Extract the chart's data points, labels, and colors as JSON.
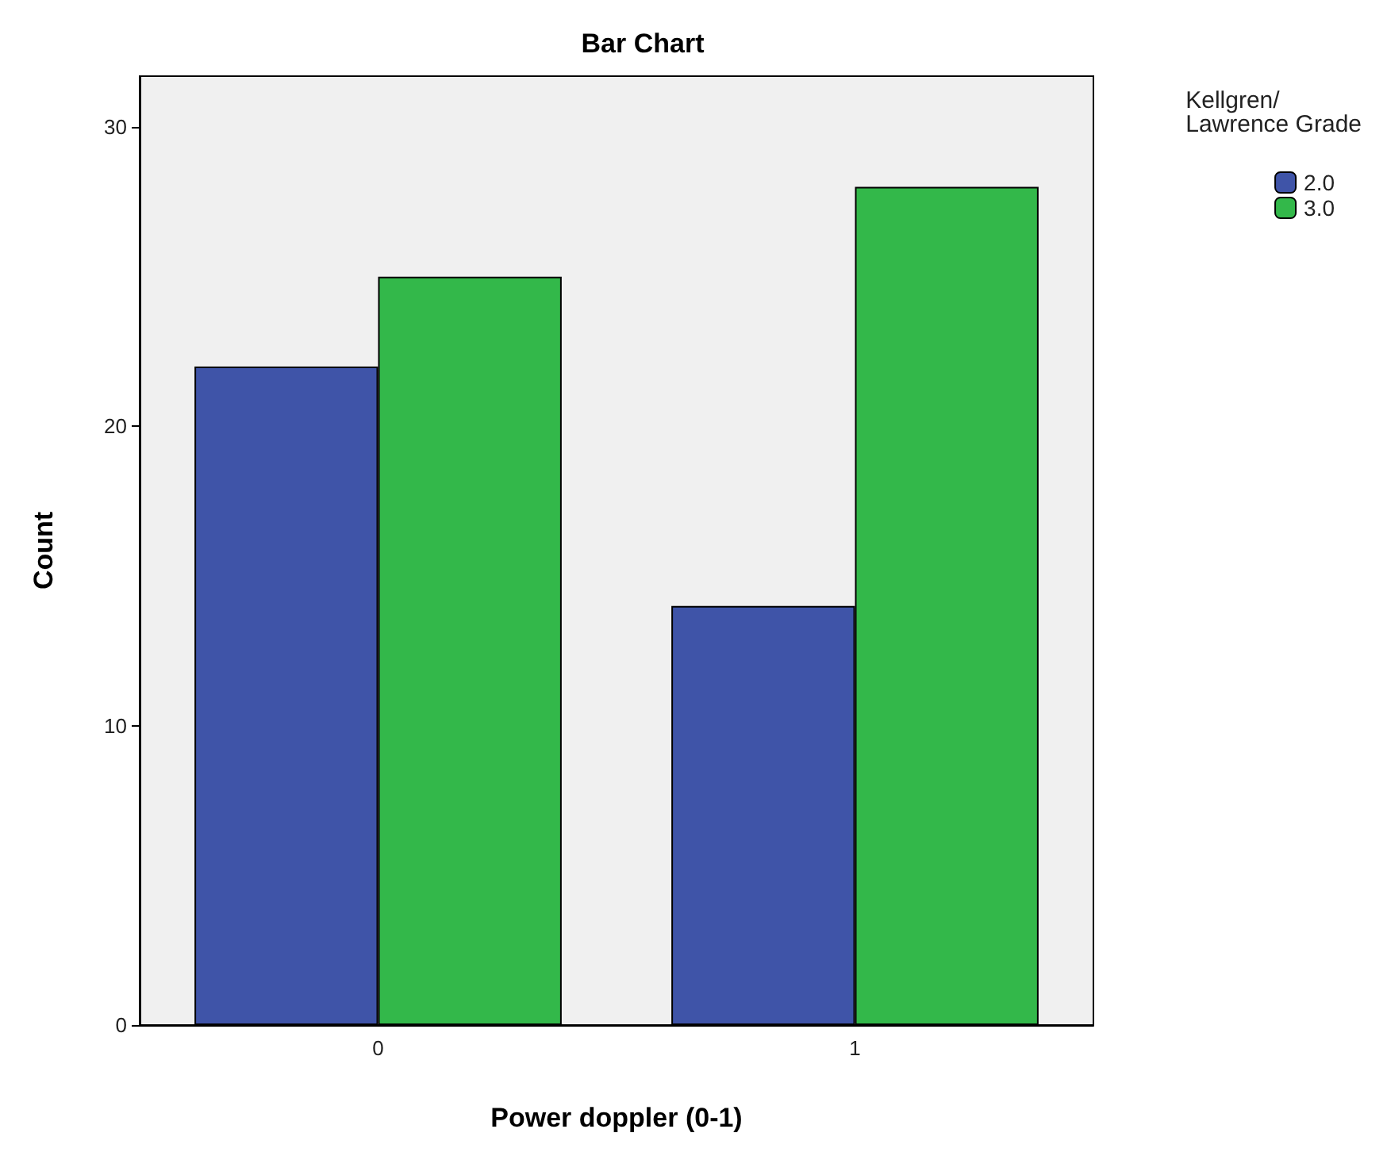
{
  "chart_data": {
    "type": "bar",
    "title": "Bar Chart",
    "xlabel": "Power doppler (0-1)",
    "ylabel": "Count",
    "legend_title": "Kellgren/Lawrence Grade",
    "categories": [
      "0",
      "1"
    ],
    "series": [
      {
        "name": "2.0",
        "color": "#3f54a8",
        "values": [
          22,
          14
        ]
      },
      {
        "name": "3.0",
        "color": "#33b84a",
        "values": [
          25,
          28
        ]
      }
    ],
    "ylim": [
      0,
      31.7
    ],
    "yticks": [
      0,
      10,
      20,
      30
    ],
    "grid": false,
    "legend": "right"
  }
}
